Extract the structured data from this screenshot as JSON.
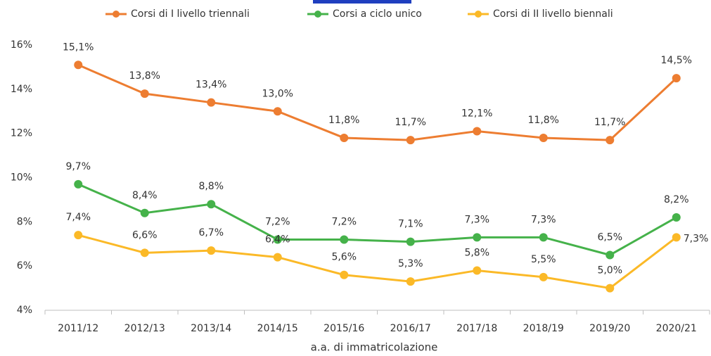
{
  "chart_data": {
    "type": "line",
    "x_label": "a.a. di immatricolazione",
    "categories": [
      "2011/12",
      "2012/13",
      "2013/14",
      "2014/15",
      "2015/16",
      "2016/17",
      "2017/18",
      "2018/19",
      "2019/20",
      "2020/21"
    ],
    "series": [
      {
        "name": "Corsi di I livello triennali",
        "color": "#ed7d31",
        "values": [
          15.1,
          13.8,
          13.4,
          13.0,
          11.8,
          11.7,
          12.1,
          11.8,
          11.7,
          14.5
        ],
        "value_labels": [
          "15,1%",
          "13,8%",
          "13,4%",
          "13,0%",
          "11,8%",
          "11,7%",
          "12,1%",
          "11,8%",
          "11,7%",
          "14,5%"
        ]
      },
      {
        "name": "Corsi a ciclo unico",
        "color": "#45b24a",
        "values": [
          9.7,
          8.4,
          8.8,
          7.2,
          7.2,
          7.1,
          7.3,
          7.3,
          6.5,
          8.2
        ],
        "value_labels": [
          "9,7%",
          "8,4%",
          "8,8%",
          "7,2%",
          "7,2%",
          "7,1%",
          "7,3%",
          "7,3%",
          "6,5%",
          "8,2%"
        ]
      },
      {
        "name": "Corsi di II livello biennali",
        "color": "#fbb927",
        "values": [
          7.4,
          6.6,
          6.7,
          6.4,
          5.6,
          5.3,
          5.8,
          5.5,
          5.0,
          7.3
        ],
        "value_labels": [
          "7,4%",
          "6,6%",
          "6,7%",
          "6,4%",
          "5,6%",
          "5,3%",
          "5,8%",
          "5,5%",
          "5,0%",
          "7,3%"
        ]
      }
    ],
    "ylim": [
      4,
      16
    ],
    "yticks": [
      {
        "value": 4,
        "label": "4%"
      },
      {
        "value": 6,
        "label": "6%"
      },
      {
        "value": 8,
        "label": "8%"
      },
      {
        "value": 10,
        "label": "10%"
      },
      {
        "value": 12,
        "label": "12%"
      },
      {
        "value": 14,
        "label": "14%"
      },
      {
        "value": 16,
        "label": "16%"
      }
    ],
    "grid": false,
    "legend": "top"
  }
}
